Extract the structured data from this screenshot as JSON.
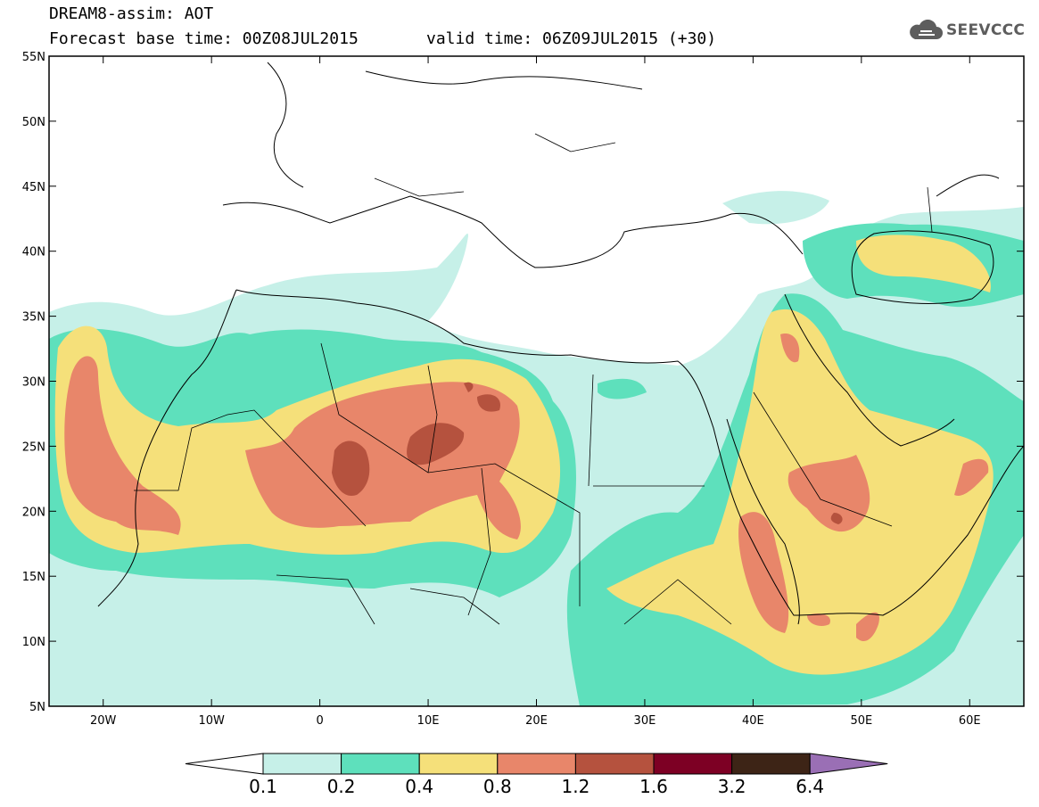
{
  "header": {
    "title": "DREAM8-assim: AOT",
    "base_time": "Forecast base time: 00Z08JUL2015",
    "valid_time": "valid time: 06Z09JUL2015 (+30)",
    "logo_text": "SEEVCCC",
    "logo_icon": "cloud-icon"
  },
  "map": {
    "lon_range": [
      -25,
      65
    ],
    "lat_range": [
      5,
      55
    ],
    "lat_labels": [
      "55N",
      "50N",
      "45N",
      "40N",
      "35N",
      "30N",
      "25N",
      "20N",
      "15N",
      "10N",
      "5N"
    ],
    "lon_labels": [
      "20W",
      "10W",
      "0",
      "10E",
      "20E",
      "30E",
      "40E",
      "50E",
      "60E"
    ],
    "field": "AOT"
  },
  "colorbar": {
    "labels": [
      "0.1",
      "0.2",
      "0.4",
      "0.8",
      "1.2",
      "1.6",
      "3.2",
      "6.4"
    ],
    "colors": [
      "#ffffff",
      "#c6f0e8",
      "#5ee0bc",
      "#f5e07a",
      "#e8866a",
      "#b5523e",
      "#7d0024",
      "#3d2416",
      "#9a6fb5"
    ]
  }
}
